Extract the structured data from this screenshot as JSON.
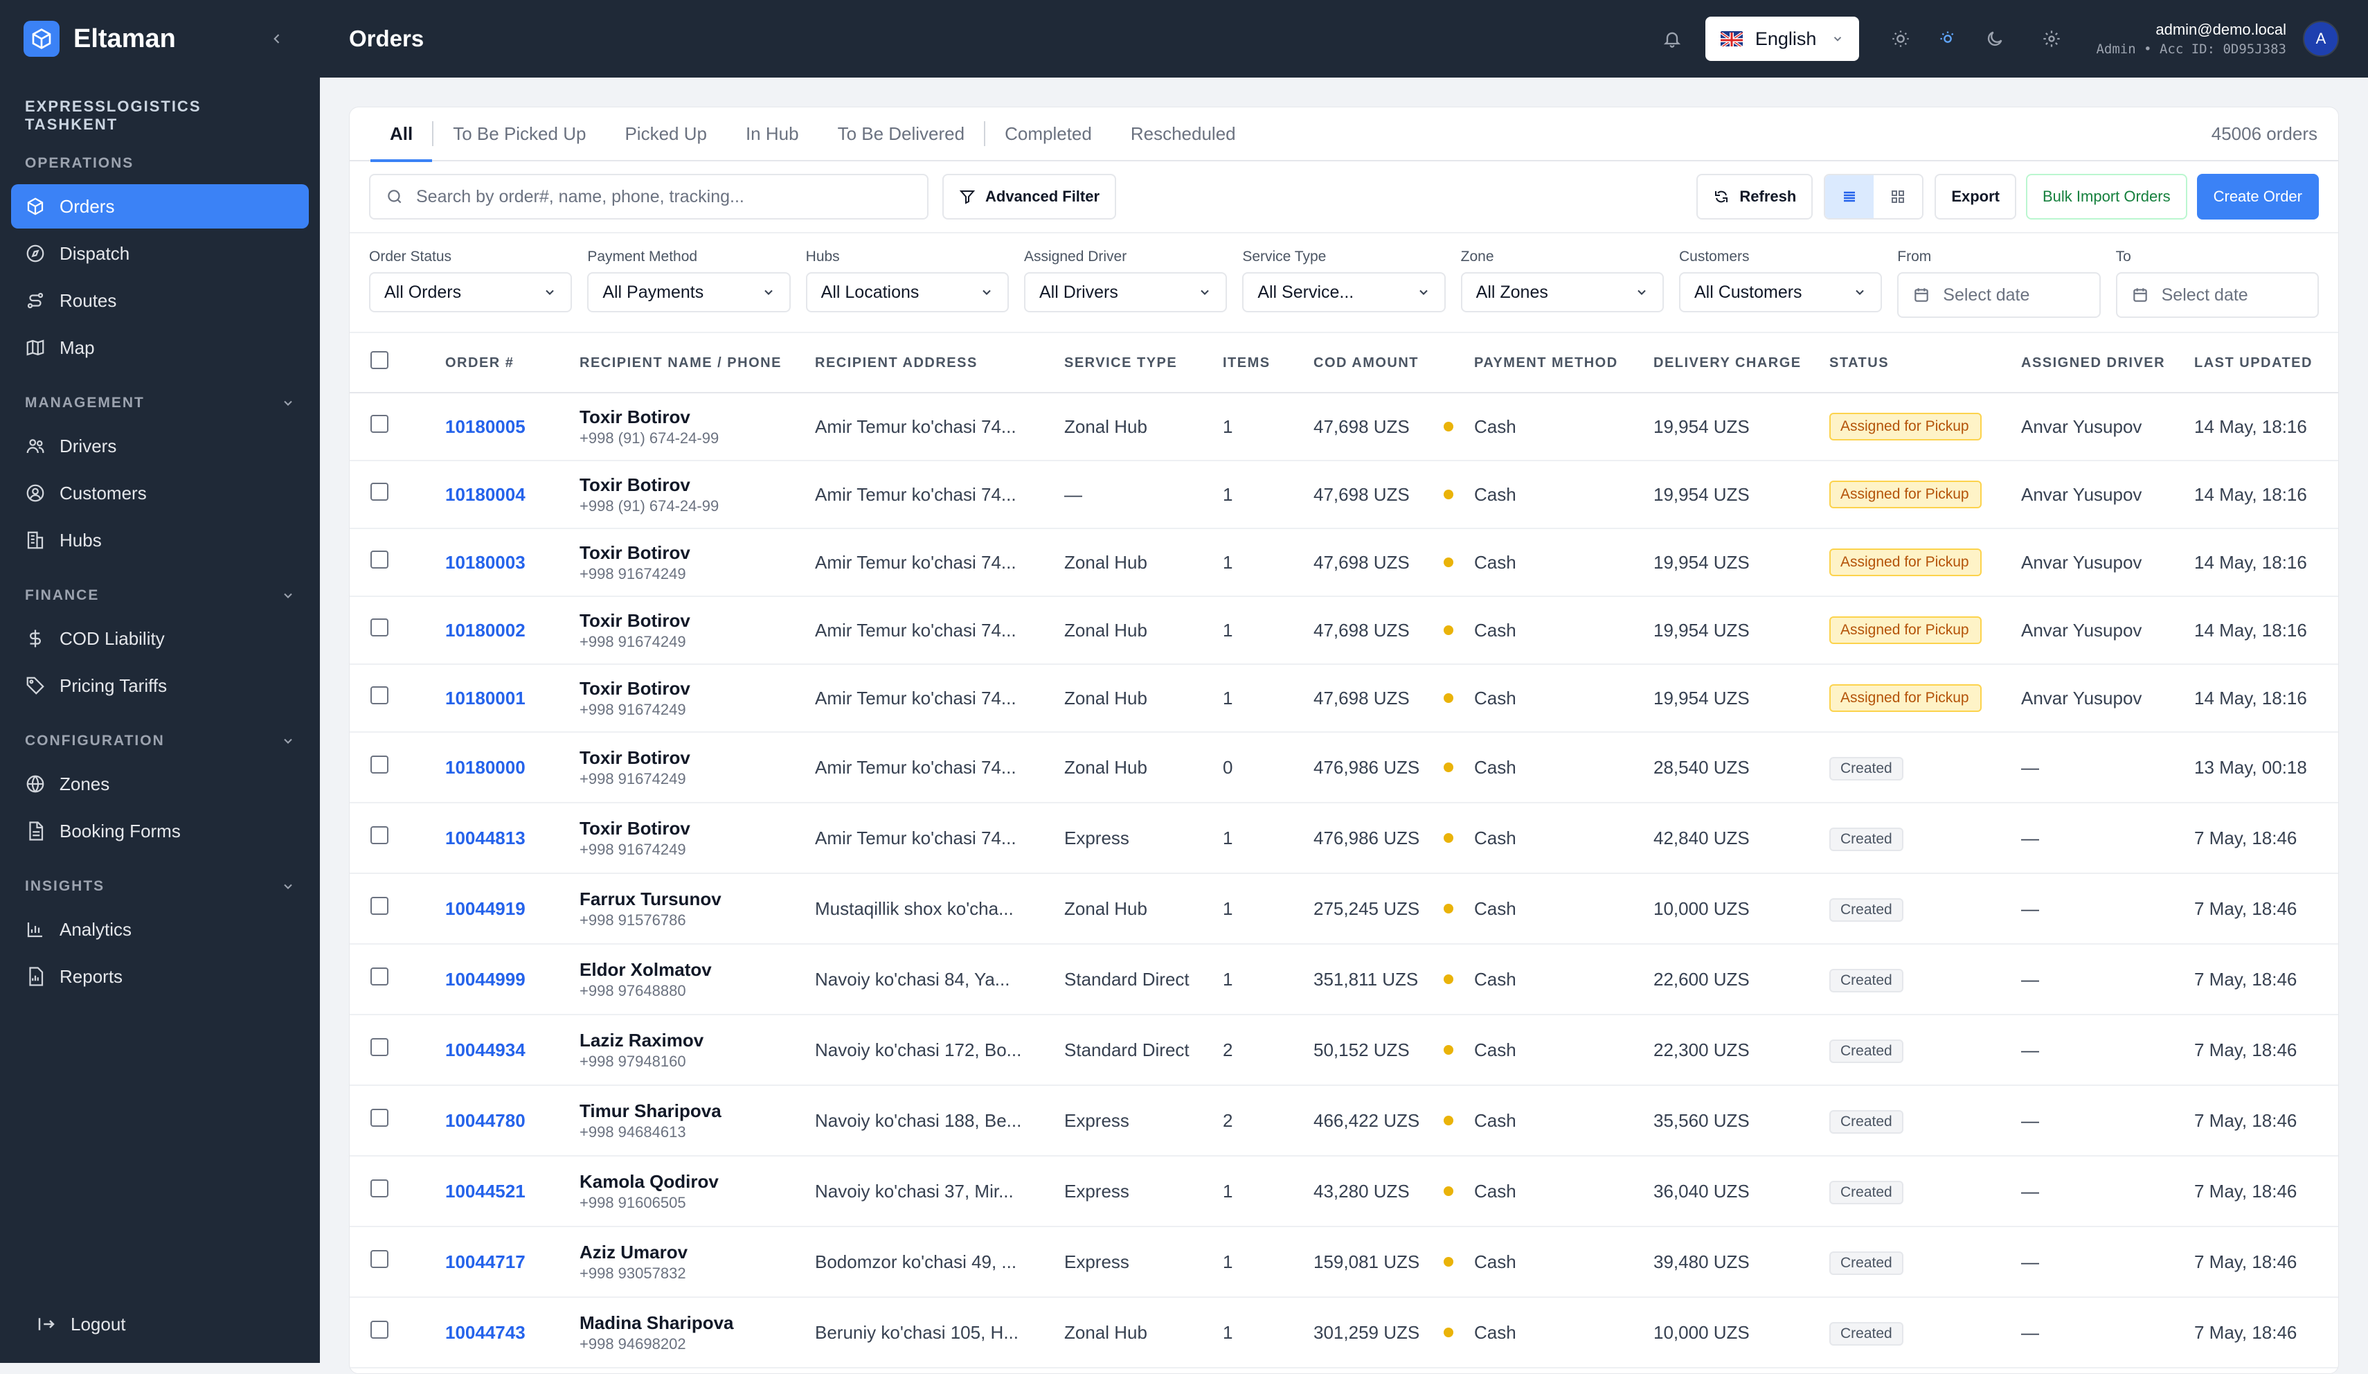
{
  "app": {
    "name": "Eltaman",
    "company": "EXPRESSLOGISTICS TASHKENT"
  },
  "sidebar": {
    "sections": [
      {
        "title": "OPERATIONS",
        "items": [
          {
            "label": "Orders",
            "icon": "box-icon"
          },
          {
            "label": "Dispatch",
            "icon": "compass-icon"
          },
          {
            "label": "Routes",
            "icon": "route-icon"
          },
          {
            "label": "Map",
            "icon": "map-icon"
          }
        ]
      },
      {
        "title": "MANAGEMENT",
        "items": [
          {
            "label": "Drivers",
            "icon": "users-icon"
          },
          {
            "label": "Customers",
            "icon": "user-circle-icon"
          },
          {
            "label": "Hubs",
            "icon": "building-icon"
          }
        ]
      },
      {
        "title": "FINANCE",
        "items": [
          {
            "label": "COD Liability",
            "icon": "dollar-icon"
          },
          {
            "label": "Pricing Tariffs",
            "icon": "tag-icon"
          }
        ]
      },
      {
        "title": "CONFIGURATION",
        "items": [
          {
            "label": "Zones",
            "icon": "globe-icon"
          },
          {
            "label": "Booking Forms",
            "icon": "document-icon"
          }
        ]
      },
      {
        "title": "INSIGHTS",
        "items": [
          {
            "label": "Analytics",
            "icon": "chart-icon"
          },
          {
            "label": "Reports",
            "icon": "report-icon"
          }
        ]
      }
    ],
    "logout": "Logout"
  },
  "header": {
    "title": "Orders",
    "language": "English",
    "user_email": "admin@demo.local",
    "user_meta": "Admin • Acc ID: 0D95J383",
    "avatar": "A"
  },
  "tabs": [
    "All",
    "To Be Picked Up",
    "Picked Up",
    "In Hub",
    "To Be Delivered",
    "Completed",
    "Rescheduled"
  ],
  "order_count": "45006 orders",
  "toolbar": {
    "search_placeholder": "Search by order#, name, phone, tracking...",
    "advanced_filter": "Advanced Filter",
    "refresh": "Refresh",
    "export": "Export",
    "bulk_import": "Bulk Import Orders",
    "create_order": "Create Order"
  },
  "filters": [
    {
      "label": "Order Status",
      "value": "All Orders"
    },
    {
      "label": "Payment Method",
      "value": "All Payments"
    },
    {
      "label": "Hubs",
      "value": "All Locations"
    },
    {
      "label": "Assigned Driver",
      "value": "All Drivers"
    },
    {
      "label": "Service Type",
      "value": "All Service..."
    },
    {
      "label": "Zone",
      "value": "All Zones"
    },
    {
      "label": "Customers",
      "value": "All Customers"
    }
  ],
  "date_filters": [
    {
      "label": "From",
      "placeholder": "Select date"
    },
    {
      "label": "To",
      "placeholder": "Select date"
    }
  ],
  "table": {
    "columns": [
      "ORDER #",
      "RECIPIENT NAME / PHONE",
      "RECIPIENT ADDRESS",
      "SERVICE TYPE",
      "ITEMS",
      "COD AMOUNT",
      "PAYMENT METHOD",
      "DELIVERY CHARGE",
      "STATUS",
      "ASSIGNED DRIVER",
      "LAST UPDATED"
    ],
    "rows": [
      {
        "order": "10180005",
        "name": "Toxir Botirov",
        "phone": "+998 (91) 674-24-99",
        "address": "Amir Temur ko'chasi 74...",
        "service": "Zonal Hub",
        "items": "1",
        "cod": "47,698 UZS",
        "payment": "Cash",
        "charge": "19,954 UZS",
        "status": "Assigned for Pickup",
        "status_type": "yellow",
        "driver": "Anvar Yusupov",
        "updated": "14 May, 18:16"
      },
      {
        "order": "10180004",
        "name": "Toxir Botirov",
        "phone": "+998 (91) 674-24-99",
        "address": "Amir Temur ko'chasi 74...",
        "service": "—",
        "items": "1",
        "cod": "47,698 UZS",
        "payment": "Cash",
        "charge": "19,954 UZS",
        "status": "Assigned for Pickup",
        "status_type": "yellow",
        "driver": "Anvar Yusupov",
        "updated": "14 May, 18:16"
      },
      {
        "order": "10180003",
        "name": "Toxir Botirov",
        "phone": "+998 91674249",
        "address": "Amir Temur ko'chasi 74...",
        "service": "Zonal Hub",
        "items": "1",
        "cod": "47,698 UZS",
        "payment": "Cash",
        "charge": "19,954 UZS",
        "status": "Assigned for Pickup",
        "status_type": "yellow",
        "driver": "Anvar Yusupov",
        "updated": "14 May, 18:16"
      },
      {
        "order": "10180002",
        "name": "Toxir Botirov",
        "phone": "+998 91674249",
        "address": "Amir Temur ko'chasi 74...",
        "service": "Zonal Hub",
        "items": "1",
        "cod": "47,698 UZS",
        "payment": "Cash",
        "charge": "19,954 UZS",
        "status": "Assigned for Pickup",
        "status_type": "yellow",
        "driver": "Anvar Yusupov",
        "updated": "14 May, 18:16"
      },
      {
        "order": "10180001",
        "name": "Toxir Botirov",
        "phone": "+998 91674249",
        "address": "Amir Temur ko'chasi 74...",
        "service": "Zonal Hub",
        "items": "1",
        "cod": "47,698 UZS",
        "payment": "Cash",
        "charge": "19,954 UZS",
        "status": "Assigned for Pickup",
        "status_type": "yellow",
        "driver": "Anvar Yusupov",
        "updated": "14 May, 18:16"
      },
      {
        "order": "10180000",
        "name": "Toxir Botirov",
        "phone": "+998 91674249",
        "address": "Amir Temur ko'chasi 74...",
        "service": "Zonal Hub",
        "items": "0",
        "cod": "476,986 UZS",
        "payment": "Cash",
        "charge": "28,540 UZS",
        "status": "Created",
        "status_type": "gray",
        "driver": "—",
        "updated": "13 May, 00:18"
      },
      {
        "order": "10044813",
        "name": "Toxir Botirov",
        "phone": "+998 91674249",
        "address": "Amir Temur ko'chasi 74...",
        "service": "Express",
        "items": "1",
        "cod": "476,986 UZS",
        "payment": "Cash",
        "charge": "42,840 UZS",
        "status": "Created",
        "status_type": "gray",
        "driver": "—",
        "updated": "7 May, 18:46"
      },
      {
        "order": "10044919",
        "name": "Farrux Tursunov",
        "phone": "+998 91576786",
        "address": "Mustaqillik shox ko'cha...",
        "service": "Zonal Hub",
        "items": "1",
        "cod": "275,245 UZS",
        "payment": "Cash",
        "charge": "10,000 UZS",
        "status": "Created",
        "status_type": "gray",
        "driver": "—",
        "updated": "7 May, 18:46"
      },
      {
        "order": "10044999",
        "name": "Eldor Xolmatov",
        "phone": "+998 97648880",
        "address": "Navoiy ko'chasi 84, Ya...",
        "service": "Standard Direct",
        "items": "1",
        "cod": "351,811 UZS",
        "payment": "Cash",
        "charge": "22,600 UZS",
        "status": "Created",
        "status_type": "gray",
        "driver": "—",
        "updated": "7 May, 18:46"
      },
      {
        "order": "10044934",
        "name": "Laziz Raximov",
        "phone": "+998 97948160",
        "address": "Navoiy ko'chasi 172, Bo...",
        "service": "Standard Direct",
        "items": "2",
        "cod": "50,152 UZS",
        "payment": "Cash",
        "charge": "22,300 UZS",
        "status": "Created",
        "status_type": "gray",
        "driver": "—",
        "updated": "7 May, 18:46"
      },
      {
        "order": "10044780",
        "name": "Timur Sharipova",
        "phone": "+998 94684613",
        "address": "Navoiy ko'chasi 188, Be...",
        "service": "Express",
        "items": "2",
        "cod": "466,422 UZS",
        "payment": "Cash",
        "charge": "35,560 UZS",
        "status": "Created",
        "status_type": "gray",
        "driver": "—",
        "updated": "7 May, 18:46"
      },
      {
        "order": "10044521",
        "name": "Kamola Qodirov",
        "phone": "+998 91606505",
        "address": "Navoiy ko'chasi 37, Mir...",
        "service": "Express",
        "items": "1",
        "cod": "43,280 UZS",
        "payment": "Cash",
        "charge": "36,040 UZS",
        "status": "Created",
        "status_type": "gray",
        "driver": "—",
        "updated": "7 May, 18:46"
      },
      {
        "order": "10044717",
        "name": "Aziz Umarov",
        "phone": "+998 93057832",
        "address": "Bodomzor ko'chasi 49, ...",
        "service": "Express",
        "items": "1",
        "cod": "159,081 UZS",
        "payment": "Cash",
        "charge": "39,480 UZS",
        "status": "Created",
        "status_type": "gray",
        "driver": "—",
        "updated": "7 May, 18:46"
      },
      {
        "order": "10044743",
        "name": "Madina Sharipova",
        "phone": "+998 94698202",
        "address": "Beruniy ko'chasi 105, H...",
        "service": "Zonal Hub",
        "items": "1",
        "cod": "301,259 UZS",
        "payment": "Cash",
        "charge": "10,000 UZS",
        "status": "Created",
        "status_type": "gray",
        "driver": "—",
        "updated": "7 May, 18:46"
      }
    ]
  }
}
